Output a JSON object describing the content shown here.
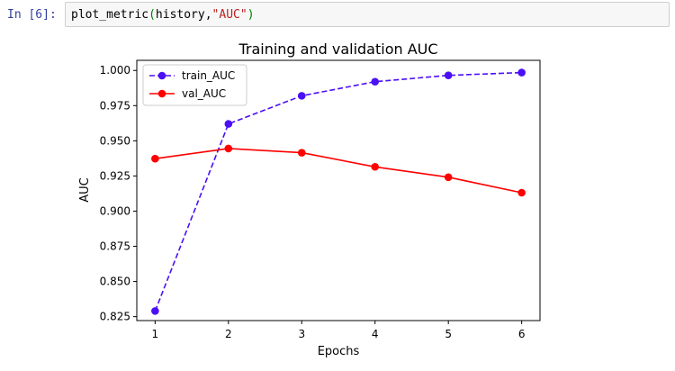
{
  "cell": {
    "prompt": "In [6]:",
    "code_func": "plot_metric",
    "code_open": "(",
    "code_args": "history,",
    "code_str": "\"AUC\"",
    "code_close": ")"
  },
  "chart_data": {
    "type": "line",
    "title": "Training and validation AUC",
    "xlabel": "Epochs",
    "ylabel": "AUC",
    "x": [
      1,
      2,
      3,
      4,
      5,
      6
    ],
    "xlim": [
      0.75,
      6.25
    ],
    "ylim": [
      0.8222,
      1.0072
    ],
    "xticks": [
      1,
      2,
      3,
      4,
      5,
      6
    ],
    "xtick_labels": [
      "1",
      "2",
      "3",
      "4",
      "5",
      "6"
    ],
    "yticks": [
      0.825,
      0.85,
      0.875,
      0.9,
      0.925,
      0.95,
      0.975,
      1.0
    ],
    "ytick_labels": [
      "0.825",
      "0.850",
      "0.875",
      "0.900",
      "0.925",
      "0.950",
      "0.975",
      "1.000"
    ],
    "grid": false,
    "legend_position": "top-left",
    "series": [
      {
        "name": "train_AUC",
        "values": [
          0.829,
          0.962,
          0.982,
          0.992,
          0.9965,
          0.9985
        ],
        "color": "#4b0ff5",
        "dash": true
      },
      {
        "name": "val_AUC",
        "values": [
          0.9373,
          0.9445,
          0.9415,
          0.9315,
          0.9241,
          0.9131
        ],
        "color": "#ff0000",
        "dash": false
      }
    ]
  }
}
